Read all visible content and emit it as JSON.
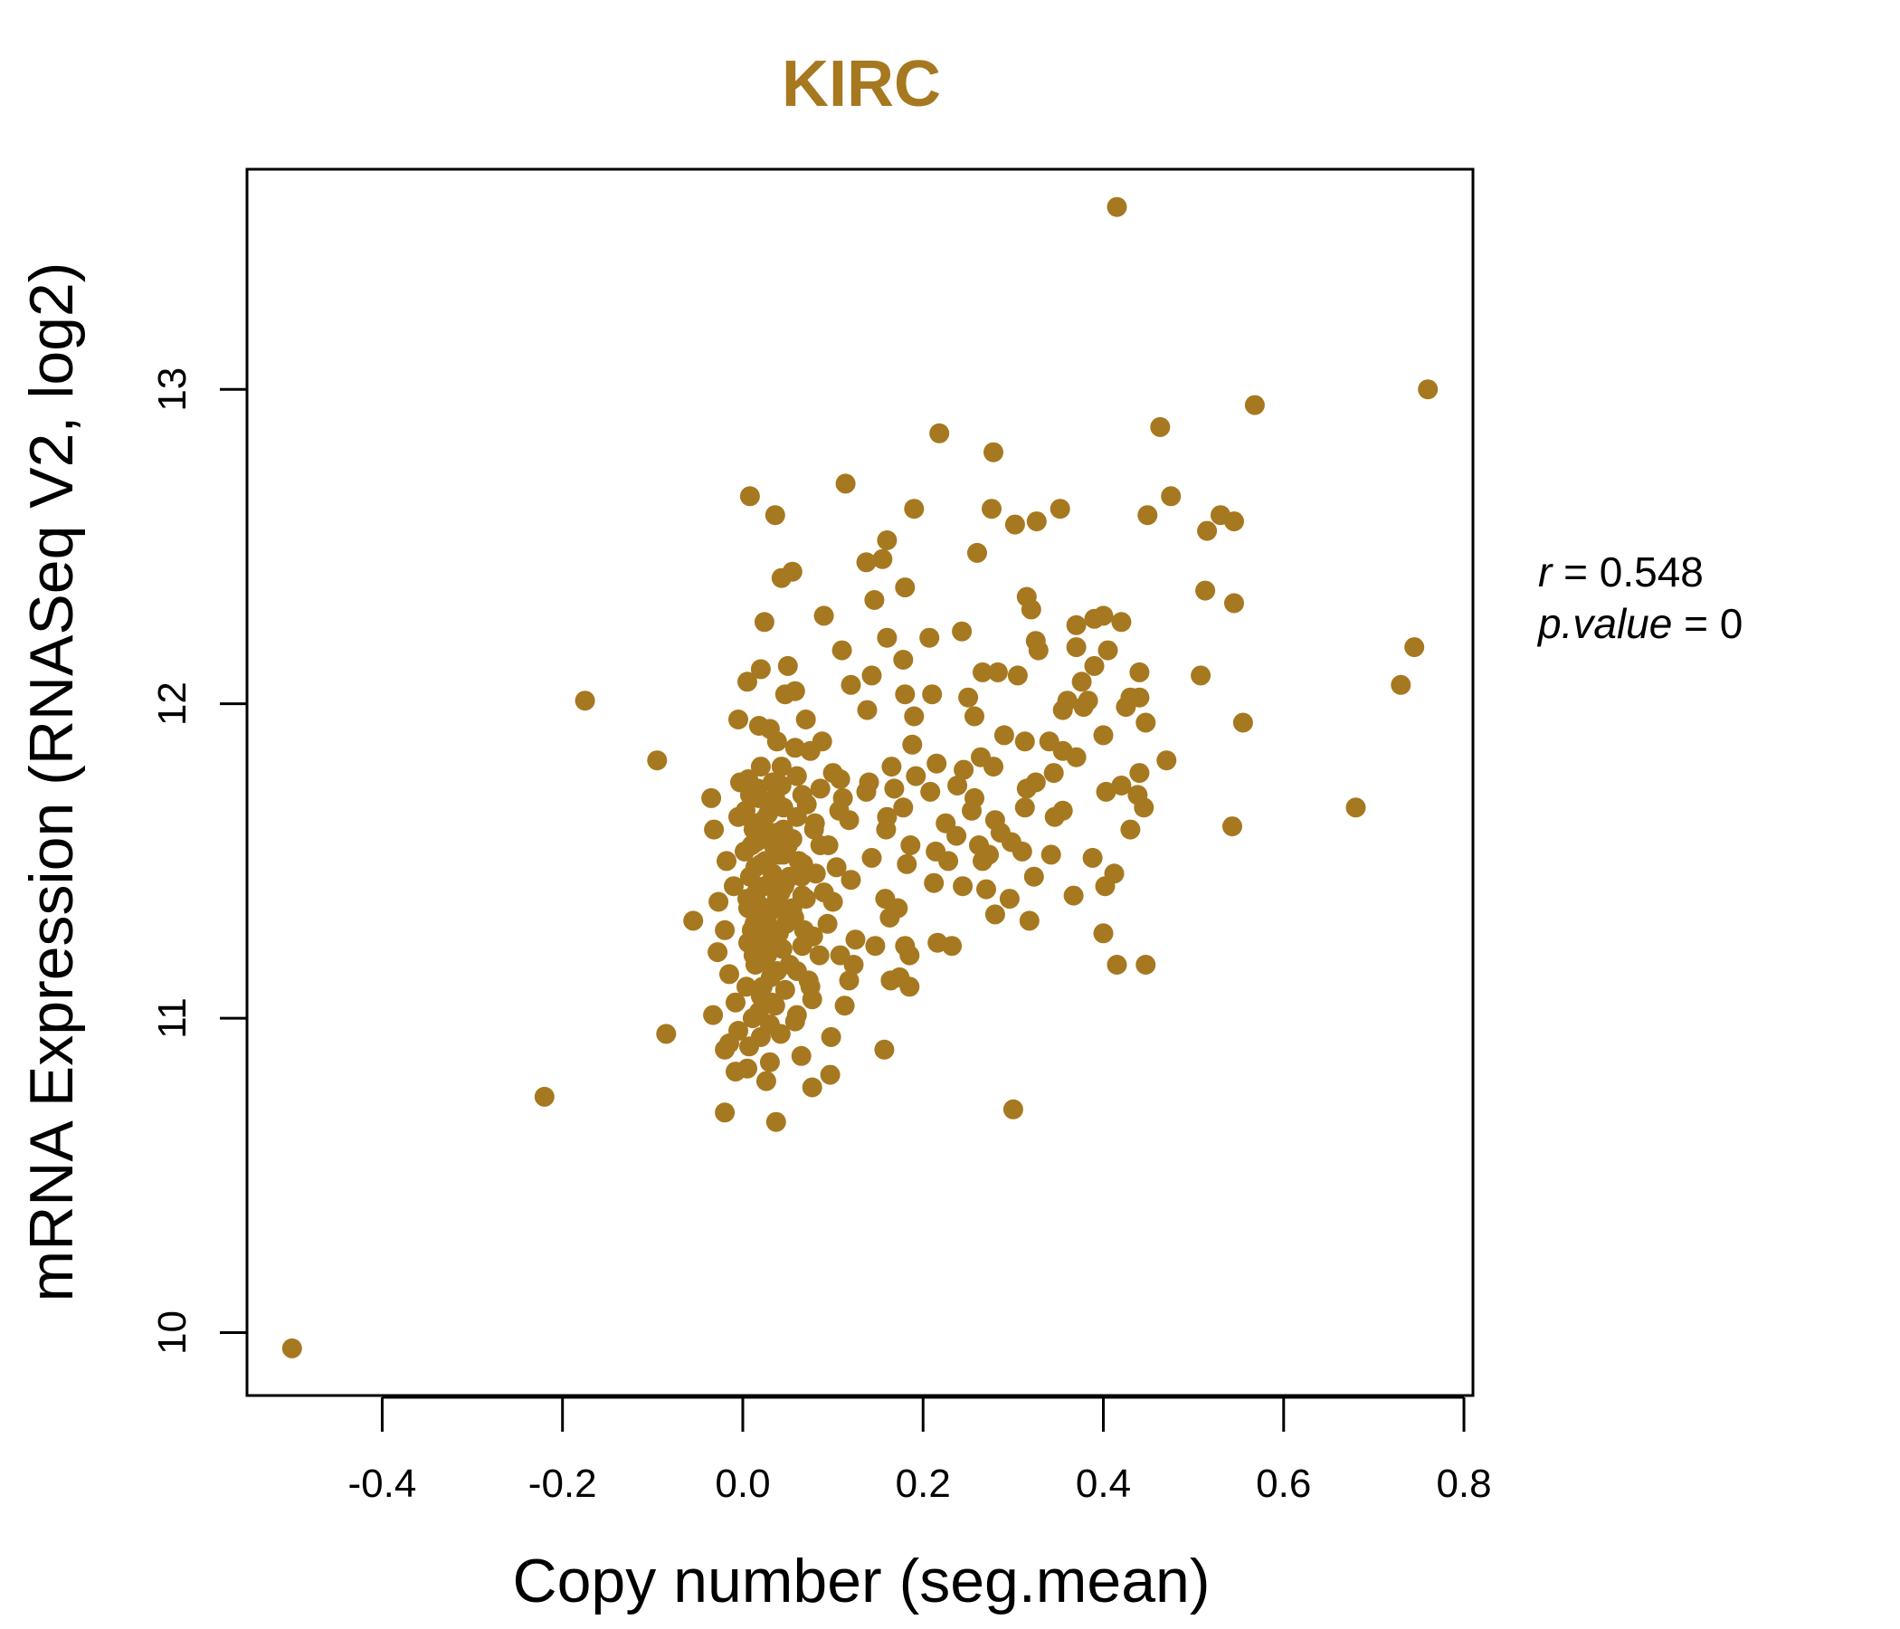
{
  "colors": {
    "accent": "#A67820",
    "axis": "#000000"
  },
  "chart_data": {
    "type": "scatter",
    "title": "KIRC",
    "xlabel": "Copy number (seg.mean)",
    "ylabel": "mRNA Expression (RNASeq V2, log2)",
    "xlim": [
      -0.55,
      0.81
    ],
    "ylim": [
      9.8,
      13.7
    ],
    "xticks": [
      -0.4,
      -0.2,
      0.0,
      0.2,
      0.4,
      0.6,
      0.8
    ],
    "xtick_labels": [
      "-0.4",
      "-0.2",
      "0.0",
      "0.2",
      "0.4",
      "0.6",
      "0.8"
    ],
    "yticks": [
      10,
      11,
      12,
      13
    ],
    "ytick_labels": [
      "10",
      "11",
      "12",
      "13"
    ],
    "grid": false,
    "legend": "none",
    "annotations": {
      "r_label": "r",
      "r_value": "0.548",
      "p_label": "p.value",
      "p_value": "0"
    },
    "points": [
      [
        -0.5,
        9.95
      ],
      [
        -0.22,
        10.75
      ],
      [
        -0.175,
        12.01
      ],
      [
        -0.095,
        11.82
      ],
      [
        -0.085,
        10.95
      ],
      [
        0.415,
        13.58
      ],
      [
        0.76,
        13.0
      ],
      [
        0.568,
        12.95
      ],
      [
        0.463,
        12.88
      ],
      [
        0.218,
        12.86
      ],
      [
        0.278,
        12.8
      ],
      [
        0.114,
        12.7
      ],
      [
        0.008,
        12.66
      ],
      [
        0.475,
        12.66
      ],
      [
        0.036,
        12.6
      ],
      [
        0.19,
        12.62
      ],
      [
        0.276,
        12.62
      ],
      [
        0.352,
        12.62
      ],
      [
        0.302,
        12.57
      ],
      [
        0.326,
        12.58
      ],
      [
        0.449,
        12.6
      ],
      [
        0.515,
        12.55
      ],
      [
        0.53,
        12.6
      ],
      [
        0.545,
        12.58
      ],
      [
        0.16,
        12.52
      ],
      [
        0.26,
        12.48
      ],
      [
        0.137,
        12.45
      ],
      [
        0.155,
        12.46
      ],
      [
        0.043,
        12.4
      ],
      [
        0.055,
        12.42
      ],
      [
        0.18,
        12.37
      ],
      [
        0.513,
        12.36
      ],
      [
        0.315,
        12.34
      ],
      [
        0.146,
        12.33
      ],
      [
        0.545,
        12.32
      ],
      [
        0.09,
        12.28
      ],
      [
        0.32,
        12.3
      ],
      [
        0.37,
        12.25
      ],
      [
        0.39,
        12.27
      ],
      [
        0.4,
        12.28
      ],
      [
        0.42,
        12.26
      ],
      [
        0.024,
        12.26
      ],
      [
        0.16,
        12.21
      ],
      [
        0.207,
        12.21
      ],
      [
        0.243,
        12.23
      ],
      [
        0.325,
        12.2
      ],
      [
        0.11,
        12.17
      ],
      [
        0.328,
        12.17
      ],
      [
        0.37,
        12.18
      ],
      [
        0.405,
        12.17
      ],
      [
        0.745,
        12.18
      ],
      [
        0.178,
        12.14
      ],
      [
        0.05,
        12.12
      ],
      [
        0.02,
        12.11
      ],
      [
        0.39,
        12.12
      ],
      [
        0.44,
        12.1
      ],
      [
        0.508,
        12.09
      ],
      [
        0.143,
        12.09
      ],
      [
        0.266,
        12.1
      ],
      [
        0.283,
        12.1
      ],
      [
        0.305,
        12.09
      ],
      [
        0.005,
        12.07
      ],
      [
        0.12,
        12.06
      ],
      [
        0.376,
        12.07
      ],
      [
        0.73,
        12.06
      ],
      [
        0.047,
        12.03
      ],
      [
        0.058,
        12.04
      ],
      [
        0.18,
        12.03
      ],
      [
        0.21,
        12.03
      ],
      [
        0.25,
        12.02
      ],
      [
        0.36,
        12.01
      ],
      [
        0.383,
        12.01
      ],
      [
        0.43,
        12.02
      ],
      [
        0.44,
        12.02
      ],
      [
        0.378,
        11.99
      ],
      [
        0.425,
        11.99
      ],
      [
        0.138,
        11.98
      ],
      [
        0.355,
        11.98
      ],
      [
        0.19,
        11.96
      ],
      [
        0.257,
        11.96
      ],
      [
        0.555,
        11.94
      ],
      [
        0.447,
        11.94
      ],
      [
        -0.005,
        11.95
      ],
      [
        0.018,
        11.93
      ],
      [
        0.03,
        11.92
      ],
      [
        0.07,
        11.95
      ],
      [
        0.29,
        11.9
      ],
      [
        0.4,
        11.9
      ],
      [
        0.038,
        11.88
      ],
      [
        0.088,
        11.88
      ],
      [
        0.34,
        11.88
      ],
      [
        0.313,
        11.88
      ],
      [
        0.188,
        11.87
      ],
      [
        0.058,
        11.86
      ],
      [
        0.075,
        11.85
      ],
      [
        0.355,
        11.85
      ],
      [
        0.37,
        11.83
      ],
      [
        0.264,
        11.83
      ],
      [
        0.47,
        11.82
      ],
      [
        0.02,
        11.8
      ],
      [
        0.043,
        11.8
      ],
      [
        0.1,
        11.78
      ],
      [
        0.165,
        11.8
      ],
      [
        0.215,
        11.81
      ],
      [
        0.278,
        11.8
      ],
      [
        0.245,
        11.79
      ],
      [
        0.345,
        11.78
      ],
      [
        0.44,
        11.78
      ],
      [
        0.06,
        11.77
      ],
      [
        0.006,
        11.76
      ],
      [
        -0.003,
        11.75
      ],
      [
        0.108,
        11.76
      ],
      [
        0.14,
        11.75
      ],
      [
        0.192,
        11.77
      ],
      [
        0.325,
        11.75
      ],
      [
        0.42,
        11.74
      ],
      [
        0.017,
        11.73
      ],
      [
        0.043,
        11.74
      ],
      [
        0.086,
        11.73
      ],
      [
        0.137,
        11.72
      ],
      [
        0.168,
        11.73
      ],
      [
        0.238,
        11.74
      ],
      [
        0.315,
        11.73
      ],
      [
        0.403,
        11.72
      ],
      [
        -0.035,
        11.7
      ],
      [
        0.008,
        11.71
      ],
      [
        0.036,
        11.7
      ],
      [
        0.066,
        11.71
      ],
      [
        0.111,
        11.7
      ],
      [
        0.208,
        11.72
      ],
      [
        0.257,
        11.7
      ],
      [
        0.438,
        11.71
      ],
      [
        0.045,
        11.67
      ],
      [
        0.071,
        11.68
      ],
      [
        0.107,
        11.66
      ],
      [
        0.178,
        11.67
      ],
      [
        0.254,
        11.66
      ],
      [
        0.313,
        11.67
      ],
      [
        0.355,
        11.66
      ],
      [
        0.445,
        11.67
      ],
      [
        0.68,
        11.67
      ],
      [
        -0.005,
        11.64
      ],
      [
        0.023,
        11.63
      ],
      [
        0.06,
        11.64
      ],
      [
        0.118,
        11.63
      ],
      [
        0.16,
        11.64
      ],
      [
        0.225,
        11.62
      ],
      [
        0.28,
        11.63
      ],
      [
        0.346,
        11.64
      ],
      [
        0.543,
        11.61
      ],
      [
        -0.032,
        11.6
      ],
      [
        0.012,
        11.6
      ],
      [
        0.038,
        11.59
      ],
      [
        0.079,
        11.6
      ],
      [
        0.159,
        11.6
      ],
      [
        0.237,
        11.58
      ],
      [
        0.286,
        11.59
      ],
      [
        0.43,
        11.6
      ],
      [
        0.015,
        11.56
      ],
      [
        0.055,
        11.57
      ],
      [
        0.086,
        11.55
      ],
      [
        0.186,
        11.55
      ],
      [
        0.262,
        11.55
      ],
      [
        0.298,
        11.56
      ],
      [
        0.002,
        11.53
      ],
      [
        0.045,
        11.52
      ],
      [
        0.143,
        11.51
      ],
      [
        0.214,
        11.53
      ],
      [
        0.273,
        11.52
      ],
      [
        0.31,
        11.53
      ],
      [
        0.342,
        11.52
      ],
      [
        0.388,
        11.51
      ],
      [
        -0.018,
        11.5
      ],
      [
        0.02,
        11.49
      ],
      [
        0.067,
        11.49
      ],
      [
        0.104,
        11.48
      ],
      [
        0.182,
        11.49
      ],
      [
        0.228,
        11.5
      ],
      [
        0.266,
        11.5
      ],
      [
        0.033,
        11.46
      ],
      [
        0.081,
        11.46
      ],
      [
        0.12,
        11.44
      ],
      [
        0.323,
        11.45
      ],
      [
        0.412,
        11.46
      ],
      [
        -0.01,
        11.42
      ],
      [
        0.047,
        11.43
      ],
      [
        0.212,
        11.43
      ],
      [
        0.244,
        11.42
      ],
      [
        0.27,
        11.41
      ],
      [
        0.402,
        11.42
      ],
      [
        0.005,
        11.38
      ],
      [
        0.066,
        11.39
      ],
      [
        0.158,
        11.38
      ],
      [
        0.296,
        11.38
      ],
      [
        0.367,
        11.39
      ],
      [
        -0.027,
        11.37
      ],
      [
        0.018,
        11.36
      ],
      [
        0.1,
        11.37
      ],
      [
        0.172,
        11.35
      ],
      [
        0.028,
        11.33
      ],
      [
        0.057,
        11.32
      ],
      [
        0.163,
        11.32
      ],
      [
        0.28,
        11.33
      ],
      [
        -0.055,
        11.31
      ],
      [
        0.013,
        11.3
      ],
      [
        0.094,
        11.3
      ],
      [
        0.318,
        11.31
      ],
      [
        -0.02,
        11.28
      ],
      [
        0.04,
        11.27
      ],
      [
        0.078,
        11.26
      ],
      [
        0.125,
        11.25
      ],
      [
        0.4,
        11.27
      ],
      [
        0.006,
        11.24
      ],
      [
        0.066,
        11.23
      ],
      [
        0.147,
        11.23
      ],
      [
        0.18,
        11.23
      ],
      [
        0.216,
        11.24
      ],
      [
        0.232,
        11.23
      ],
      [
        -0.028,
        11.21
      ],
      [
        0.027,
        11.2
      ],
      [
        0.108,
        11.2
      ],
      [
        0.185,
        11.2
      ],
      [
        0.014,
        11.17
      ],
      [
        0.052,
        11.17
      ],
      [
        0.123,
        11.17
      ],
      [
        0.415,
        11.17
      ],
      [
        0.447,
        11.17
      ],
      [
        -0.015,
        11.14
      ],
      [
        0.031,
        11.13
      ],
      [
        0.073,
        11.12
      ],
      [
        0.118,
        11.12
      ],
      [
        0.164,
        11.12
      ],
      [
        0.174,
        11.13
      ],
      [
        0.004,
        11.1
      ],
      [
        0.047,
        11.09
      ],
      [
        0.185,
        11.1
      ],
      [
        0.02,
        11.07
      ],
      [
        0.077,
        11.06
      ],
      [
        -0.008,
        11.05
      ],
      [
        0.036,
        11.04
      ],
      [
        0.113,
        11.04
      ],
      [
        0.06,
        11.01
      ],
      [
        -0.033,
        11.01
      ],
      [
        0.011,
        11.0
      ],
      [
        0.03,
        10.98
      ],
      [
        0.058,
        10.99
      ],
      [
        -0.005,
        10.96
      ],
      [
        0.042,
        10.95
      ],
      [
        0.02,
        10.94
      ],
      [
        0.098,
        10.94
      ],
      [
        -0.015,
        10.92
      ],
      [
        0.007,
        10.91
      ],
      [
        -0.02,
        10.9
      ],
      [
        0.157,
        10.9
      ],
      [
        0.065,
        10.88
      ],
      [
        0.03,
        10.86
      ],
      [
        0.005,
        10.84
      ],
      [
        -0.008,
        10.83
      ],
      [
        0.097,
        10.82
      ],
      [
        0.026,
        10.8
      ],
      [
        0.077,
        10.78
      ],
      [
        0.3,
        10.71
      ],
      [
        -0.02,
        10.7
      ],
      [
        0.037,
        10.67
      ],
      [
        0.01,
        11.55
      ],
      [
        0.025,
        11.5
      ],
      [
        0.035,
        11.45
      ],
      [
        0.015,
        11.4
      ],
      [
        0.04,
        11.35
      ],
      [
        0.02,
        11.3
      ],
      [
        0.03,
        11.25
      ],
      [
        0.012,
        11.2
      ],
      [
        0.038,
        11.15
      ],
      [
        0.022,
        11.1
      ],
      [
        0.045,
        11.6
      ],
      [
        0.028,
        11.65
      ],
      [
        0.018,
        11.7
      ],
      [
        0.033,
        11.75
      ],
      [
        0.05,
        11.55
      ],
      [
        0.008,
        11.45
      ],
      [
        0.042,
        11.4
      ],
      [
        0.026,
        11.35
      ],
      [
        0.048,
        11.3
      ],
      [
        0.016,
        11.25
      ],
      [
        0.034,
        11.55
      ],
      [
        0.024,
        11.42
      ],
      [
        0.04,
        11.52
      ],
      [
        0.012,
        11.62
      ],
      [
        0.03,
        11.68
      ],
      [
        0.052,
        11.45
      ],
      [
        0.006,
        11.35
      ],
      [
        0.036,
        11.28
      ],
      [
        0.02,
        11.18
      ],
      [
        0.044,
        11.22
      ],
      [
        0.028,
        11.58
      ],
      [
        0.014,
        11.48
      ],
      [
        0.038,
        11.38
      ],
      [
        0.022,
        11.32
      ],
      [
        0.046,
        11.42
      ],
      [
        0.01,
        11.28
      ],
      [
        0.032,
        11.05
      ],
      [
        0.018,
        11.02
      ],
      [
        0.055,
        11.35
      ],
      [
        0.062,
        11.5
      ],
      [
        0.003,
        11.66
      ],
      [
        0.065,
        11.45
      ],
      [
        0.07,
        11.38
      ],
      [
        0.068,
        11.28
      ],
      [
        0.09,
        11.4
      ],
      [
        0.095,
        11.55
      ],
      [
        0.08,
        11.62
      ],
      [
        0.085,
        11.2
      ],
      [
        0.06,
        11.15
      ],
      [
        0.075,
        11.1
      ]
    ]
  }
}
